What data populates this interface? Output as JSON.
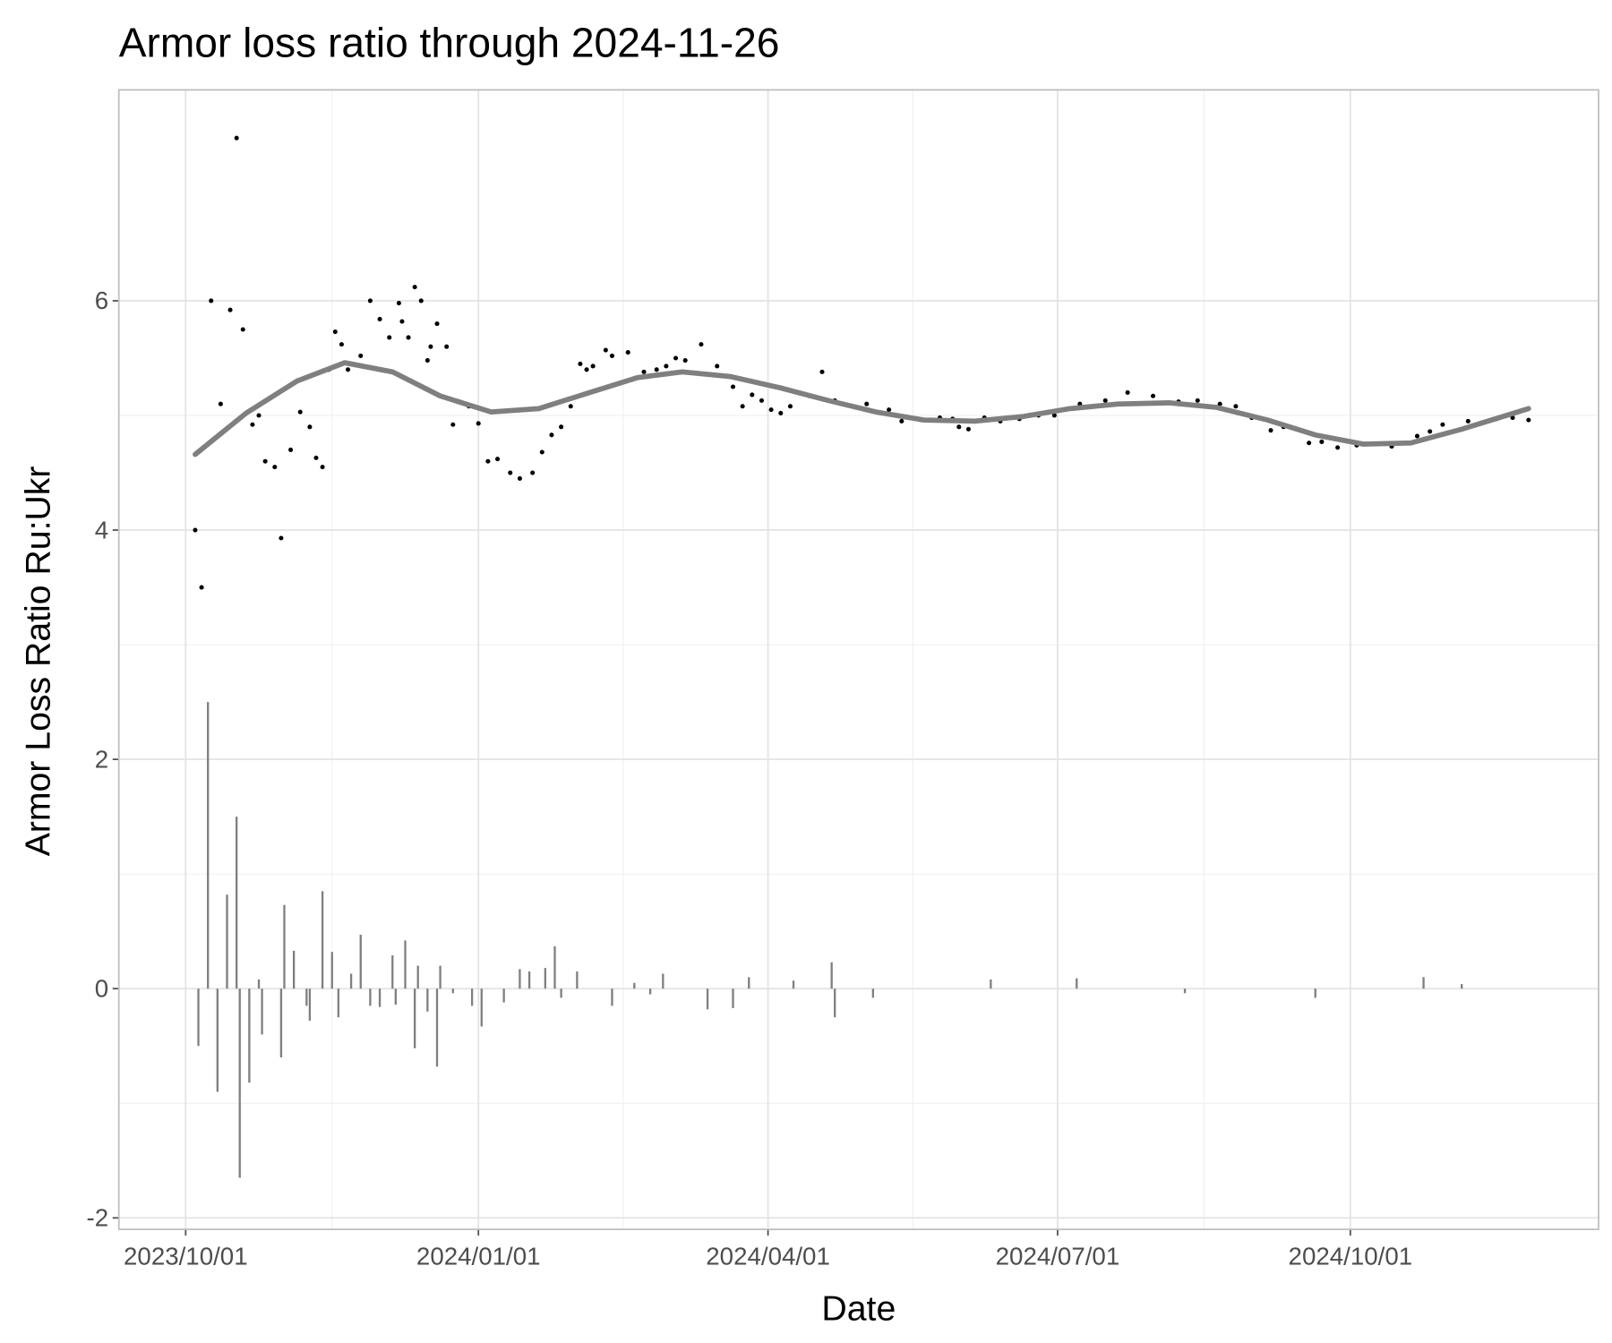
{
  "chart_data": {
    "type": "scatter",
    "title": "Armor loss ratio through 2024-11-26",
    "x_label": "Date",
    "y_label": "Armor Loss Ratio Ru:Ukr",
    "xlim": [
      "2023/09/10",
      "2024/12/18"
    ],
    "xticks": [
      "2023/10/01",
      "2024/01/01",
      "2024/04/01",
      "2024/07/01",
      "2024/10/01"
    ],
    "ylim": [
      -2.1,
      7.84
    ],
    "yticks": [
      -2,
      0,
      2,
      4,
      6
    ],
    "grid": true,
    "series": [
      {
        "type": "bar",
        "color": "#7f7f7f",
        "x": [
          "2023/10/05",
          "2023/10/08",
          "2023/10/11",
          "2023/10/14",
          "2023/10/17",
          "2023/10/18",
          "2023/10/21",
          "2023/10/24",
          "2023/10/25",
          "2023/10/31",
          "2023/11/01",
          "2023/11/04",
          "2023/11/08",
          "2023/11/09",
          "2023/11/13",
          "2023/11/16",
          "2023/11/18",
          "2023/11/22",
          "2023/11/25",
          "2023/11/28",
          "2023/12/01",
          "2023/12/05",
          "2023/12/06",
          "2023/12/09",
          "2023/12/12",
          "2023/12/13",
          "2023/12/16",
          "2023/12/19",
          "2023/12/20",
          "2023/12/24",
          "2023/12/30",
          "2024/01/02",
          "2024/01/09",
          "2024/01/14",
          "2024/01/17",
          "2024/01/22",
          "2024/01/25",
          "2024/01/27",
          "2024/02/01",
          "2024/02/12",
          "2024/02/19",
          "2024/02/24",
          "2024/02/28",
          "2024/03/13",
          "2024/03/21",
          "2024/03/26",
          "2024/04/09",
          "2024/04/21",
          "2024/04/22",
          "2024/05/04",
          "2024/06/10",
          "2024/07/07",
          "2024/08/10",
          "2024/09/20",
          "2024/10/24",
          "2024/11/05"
        ],
        "values": [
          -0.5,
          2.5,
          -0.9,
          0.82,
          1.5,
          -1.65,
          -0.82,
          0.08,
          -0.4,
          -0.6,
          0.73,
          0.33,
          -0.15,
          -0.28,
          0.85,
          0.32,
          -0.25,
          0.13,
          0.47,
          -0.15,
          -0.16,
          0.29,
          -0.14,
          0.42,
          -0.52,
          0.2,
          -0.2,
          -0.68,
          0.2,
          -0.04,
          -0.15,
          -0.33,
          -0.12,
          0.17,
          0.15,
          0.18,
          0.37,
          -0.08,
          0.15,
          -0.15,
          0.05,
          -0.05,
          0.13,
          -0.18,
          -0.17,
          0.1,
          0.07,
          0.23,
          -0.25,
          -0.08,
          0.08,
          0.09,
          -0.04,
          -0.08,
          0.1,
          0.04
        ]
      },
      {
        "type": "scatter",
        "color": "#000000",
        "x": [
          "2023/10/04",
          "2023/10/06",
          "2023/10/09",
          "2023/10/12",
          "2023/10/15",
          "2023/10/17",
          "2023/10/19",
          "2023/10/22",
          "2023/10/24",
          "2023/10/26",
          "2023/10/29",
          "2023/10/31",
          "2023/11/03",
          "2023/11/06",
          "2023/11/09",
          "2023/11/11",
          "2023/11/13",
          "2023/11/15",
          "2023/11/17",
          "2023/11/19",
          "2023/11/21",
          "2023/11/25",
          "2023/11/28",
          "2023/12/01",
          "2023/12/04",
          "2023/12/07",
          "2023/12/08",
          "2023/12/10",
          "2023/12/12",
          "2023/12/14",
          "2023/12/16",
          "2023/12/17",
          "2023/12/19",
          "2023/12/22",
          "2023/12/24",
          "2023/12/26",
          "2023/12/29",
          "2024/01/01",
          "2024/01/04",
          "2024/01/07",
          "2024/01/11",
          "2024/01/14",
          "2024/01/18",
          "2024/01/21",
          "2024/01/24",
          "2024/01/27",
          "2024/01/30",
          "2024/02/02",
          "2024/02/04",
          "2024/02/06",
          "2024/02/10",
          "2024/02/12",
          "2024/02/17",
          "2024/02/22",
          "2024/02/26",
          "2024/02/29",
          "2024/03/03",
          "2024/03/06",
          "2024/03/11",
          "2024/03/16",
          "2024/03/21",
          "2024/03/24",
          "2024/03/27",
          "2024/03/30",
          "2024/04/02",
          "2024/04/05",
          "2024/04/08",
          "2024/04/14",
          "2024/04/18",
          "2024/04/22",
          "2024/05/02",
          "2024/05/09",
          "2024/05/13",
          "2024/05/19",
          "2024/05/25",
          "2024/05/29",
          "2024/05/31",
          "2024/06/03",
          "2024/06/08",
          "2024/06/13",
          "2024/06/19",
          "2024/06/25",
          "2024/06/30",
          "2024/07/08",
          "2024/07/16",
          "2024/07/23",
          "2024/07/31",
          "2024/08/08",
          "2024/08/14",
          "2024/08/21",
          "2024/08/26",
          "2024/08/31",
          "2024/09/06",
          "2024/09/10",
          "2024/09/18",
          "2024/09/22",
          "2024/09/27",
          "2024/10/03",
          "2024/10/14",
          "2024/10/22",
          "2024/10/26",
          "2024/10/30",
          "2024/11/07",
          "2024/11/16",
          "2024/11/21",
          "2024/11/26"
        ],
        "values": [
          4.0,
          3.5,
          6.0,
          5.1,
          5.92,
          7.42,
          5.75,
          4.92,
          5.0,
          4.6,
          4.55,
          3.93,
          4.7,
          5.03,
          4.9,
          4.63,
          4.55,
          5.4,
          5.73,
          5.62,
          5.4,
          5.52,
          6.0,
          5.84,
          5.68,
          5.98,
          5.82,
          5.68,
          6.12,
          6.0,
          5.48,
          5.6,
          5.8,
          5.6,
          4.92,
          5.12,
          5.08,
          4.93,
          4.6,
          4.62,
          4.5,
          4.45,
          4.5,
          4.68,
          4.83,
          4.9,
          5.08,
          5.45,
          5.4,
          5.43,
          5.57,
          5.52,
          5.55,
          5.38,
          5.4,
          5.43,
          5.5,
          5.48,
          5.62,
          5.43,
          5.25,
          5.08,
          5.18,
          5.13,
          5.05,
          5.02,
          5.08,
          5.17,
          5.38,
          5.13,
          5.1,
          5.05,
          4.95,
          4.96,
          4.98,
          4.97,
          4.9,
          4.88,
          4.98,
          4.95,
          4.97,
          5.0,
          5.0,
          5.1,
          5.13,
          5.2,
          5.17,
          5.12,
          5.13,
          5.1,
          5.08,
          4.98,
          4.87,
          4.9,
          4.76,
          4.77,
          4.72,
          4.74,
          4.73,
          4.82,
          4.86,
          4.92,
          4.95,
          4.97,
          4.98,
          4.96
        ]
      },
      {
        "type": "line",
        "color": "#7f7f7f",
        "x": [
          "2023/10/04",
          "2023/10/20",
          "2023/11/05",
          "2023/11/20",
          "2023/12/05",
          "2023/12/20",
          "2024/01/05",
          "2024/01/20",
          "2024/02/05",
          "2024/02/20",
          "2024/03/05",
          "2024/03/20",
          "2024/04/05",
          "2024/04/20",
          "2024/05/05",
          "2024/05/20",
          "2024/06/05",
          "2024/06/20",
          "2024/07/05",
          "2024/07/20",
          "2024/08/05",
          "2024/08/20",
          "2024/09/05",
          "2024/09/20",
          "2024/10/05",
          "2024/10/20",
          "2024/11/05",
          "2024/11/26"
        ],
        "values": [
          4.66,
          5.02,
          5.3,
          5.46,
          5.38,
          5.17,
          5.03,
          5.06,
          5.2,
          5.33,
          5.38,
          5.34,
          5.24,
          5.13,
          5.03,
          4.96,
          4.95,
          4.99,
          5.06,
          5.1,
          5.11,
          5.07,
          4.96,
          4.83,
          4.75,
          4.76,
          4.88,
          5.06
        ]
      }
    ]
  }
}
